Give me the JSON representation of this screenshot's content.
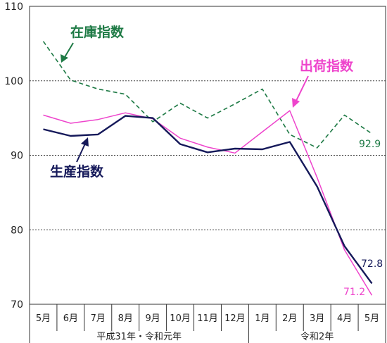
{
  "chart_data": {
    "type": "line",
    "categories": [
      "5月",
      "6月",
      "7月",
      "8月",
      "9月",
      "10月",
      "11月",
      "12月",
      "1月",
      "2月",
      "3月",
      "4月",
      "5月"
    ],
    "era_labels": [
      "平成31年・令和元年",
      "令和2年"
    ],
    "era_spans": [
      [
        0,
        7
      ],
      [
        8,
        12
      ]
    ],
    "ylim": [
      70,
      110
    ],
    "yticks": [
      "70",
      "80",
      "90",
      "100",
      "110"
    ],
    "grid": "dotted horizontal at 80, 90, 100",
    "series": [
      {
        "name": "在庫指数",
        "color": "#1e7a45",
        "style": "dashed",
        "values": [
          105.3,
          100.1,
          98.9,
          98.2,
          94.5,
          97.0,
          95.0,
          96.9,
          98.9,
          92.8,
          91.0,
          95.4,
          92.9
        ],
        "end_label": "92.9"
      },
      {
        "name": "出荷指数",
        "color": "#ee44cc",
        "style": "solid",
        "values": [
          95.4,
          94.3,
          94.8,
          95.7,
          94.9,
          92.3,
          91.1,
          90.3,
          null,
          96.0,
          87.0,
          77.3,
          71.2
        ],
        "end_label": "71.2"
      },
      {
        "name": "生産指数",
        "color": "#15195a",
        "style": "solid-bold",
        "values": [
          93.5,
          92.6,
          92.8,
          95.3,
          95.0,
          91.5,
          90.4,
          90.9,
          90.8,
          91.8,
          85.8,
          77.8,
          72.8
        ],
        "end_label": "72.8"
      }
    ]
  }
}
